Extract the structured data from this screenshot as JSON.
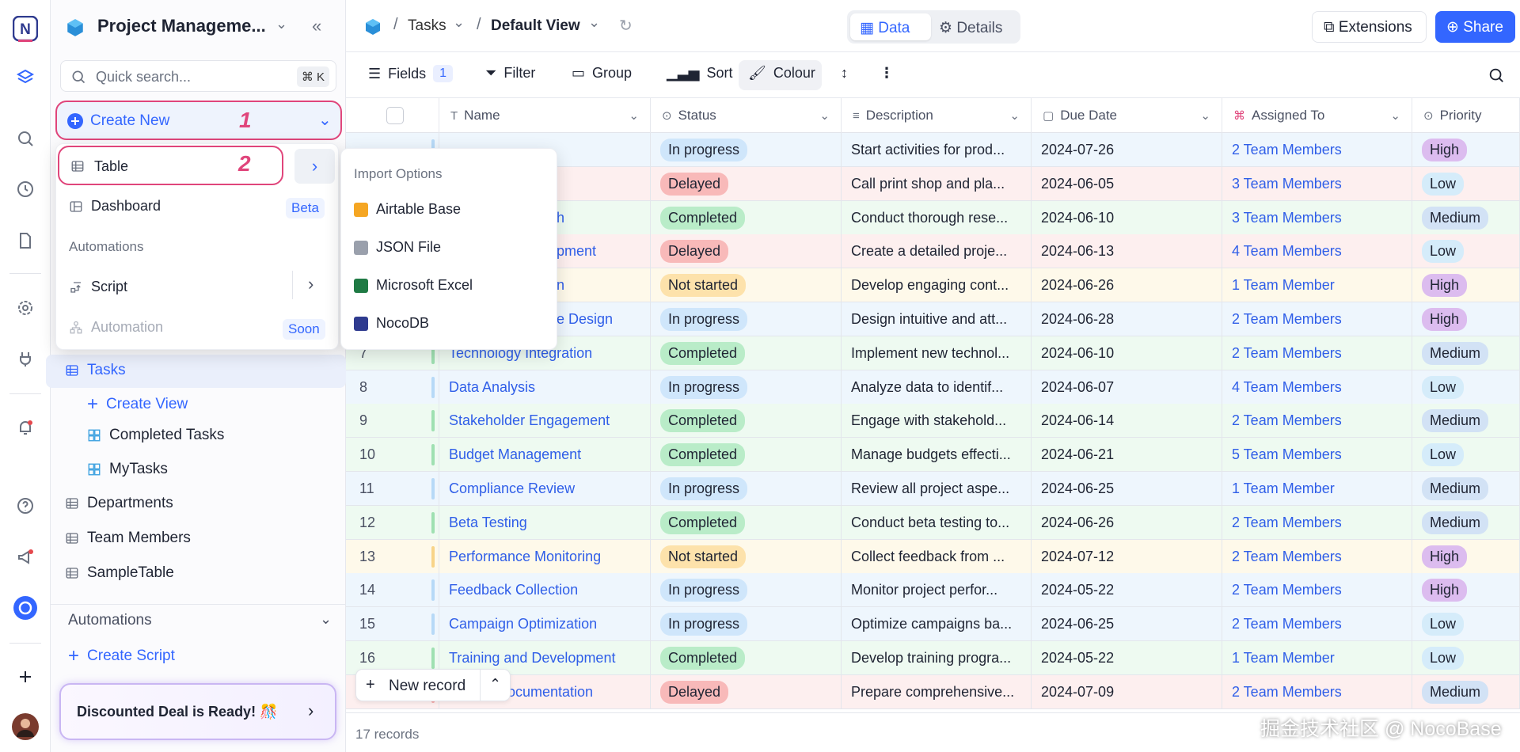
{
  "sidebar": {
    "project": "Project Manageme...",
    "search": "Quick search...",
    "shortcut": "⌘ K",
    "create_new": "Create New",
    "step_1": "1",
    "tables": [
      {
        "name": "Tasks",
        "selected": true
      },
      {
        "name": "Departments"
      },
      {
        "name": "Team Members"
      },
      {
        "name": "SampleTable"
      }
    ],
    "create_view": "Create View",
    "views": [
      "Completed Tasks",
      "MyTasks"
    ],
    "automations": "Automations",
    "create_script": "Create Script",
    "promo": "Discounted Deal is Ready! 🎊"
  },
  "create_menu": {
    "table": "Table",
    "step_2": "2",
    "dashboard": "Dashboard",
    "dashboard_badge": "Beta",
    "automations": "Automations",
    "script": "Script",
    "automation": "Automation",
    "automation_badge": "Soon"
  },
  "import_menu": {
    "title": "Import Options",
    "items": [
      "Airtable Base",
      "JSON File",
      "Microsoft Excel",
      "NocoDB"
    ]
  },
  "topbar": {
    "table": "Tasks",
    "view": "Default View",
    "tabs": [
      "Data",
      "Details"
    ],
    "extensions": "Extensions",
    "share": "Share"
  },
  "toolbar": {
    "fields": "Fields",
    "fields_count": "1",
    "filter": "Filter",
    "group": "Group",
    "sort": "Sort",
    "colour": "Colour"
  },
  "table": {
    "columns": [
      "Name",
      "Status",
      "Description",
      "Due Date",
      "Assigned To",
      "Priority"
    ],
    "status_colors": {
      "In progress": {
        "row": "#eef6fd",
        "pill": "#cfe6fb",
        "bar": "#b7d9f7"
      },
      "Delayed": {
        "row": "#fdefef",
        "pill": "#f8b9b9",
        "bar": "#f4a9a9"
      },
      "Completed": {
        "row": "#eefaf1",
        "pill": "#b9ecc8",
        "bar": "#9fe0b2"
      },
      "Not started": {
        "row": "#fef9ea",
        "pill": "#fde2ab",
        "bar": "#f8d488"
      }
    },
    "priority_colors": {
      "High": "#dcbcef",
      "Low": "#d5ecfa",
      "Medium": "#d2e2f5"
    },
    "rows": [
      {
        "no": null,
        "name": null,
        "status": "In progress",
        "description": "Start activities for prod...",
        "due": "2024-07-26",
        "assigned": "2 Team Members",
        "priority": "High"
      },
      {
        "no": null,
        "name": null,
        "status": "Delayed",
        "description": "Call print shop and pla...",
        "due": "2024-06-05",
        "assigned": "3 Team Members",
        "priority": "Low"
      },
      {
        "no": null,
        "name": "h",
        "partial": true,
        "status": "Completed",
        "description": "Conduct thorough rese...",
        "due": "2024-06-10",
        "assigned": "3 Team Members",
        "priority": "Medium"
      },
      {
        "no": null,
        "name": "pment",
        "partial": true,
        "status": "Delayed",
        "description": "Create a detailed proje...",
        "due": "2024-06-13",
        "assigned": "4 Team Members",
        "priority": "Low"
      },
      {
        "no": null,
        "name": "n",
        "partial": true,
        "status": "Not started",
        "description": "Develop engaging cont...",
        "due": "2024-06-26",
        "assigned": "1 Team Member",
        "priority": "High"
      },
      {
        "no": null,
        "name": "e Design",
        "partial": true,
        "status": "In progress",
        "description": "Design intuitive and att...",
        "due": "2024-06-28",
        "assigned": "2 Team Members",
        "priority": "High"
      },
      {
        "no": "7",
        "name": "Technology Integration",
        "status": "Completed",
        "description": "Implement new technol...",
        "due": "2024-06-10",
        "assigned": "2 Team Members",
        "priority": "Medium"
      },
      {
        "no": "8",
        "name": "Data Analysis",
        "status": "In progress",
        "description": "Analyze data to identif...",
        "due": "2024-06-07",
        "assigned": "4 Team Members",
        "priority": "Low"
      },
      {
        "no": "9",
        "name": "Stakeholder Engagement",
        "status": "Completed",
        "description": "Engage with stakehold...",
        "due": "2024-06-14",
        "assigned": "2 Team Members",
        "priority": "Medium"
      },
      {
        "no": "10",
        "name": "Budget Management",
        "status": "Completed",
        "description": "Manage budgets effecti...",
        "due": "2024-06-21",
        "assigned": "5 Team Members",
        "priority": "Low"
      },
      {
        "no": "11",
        "name": "Compliance Review",
        "status": "In progress",
        "description": "Review all project aspe...",
        "due": "2024-06-25",
        "assigned": "1 Team Member",
        "priority": "Medium"
      },
      {
        "no": "12",
        "name": "Beta Testing",
        "status": "Completed",
        "description": "Conduct beta testing to...",
        "due": "2024-06-26",
        "assigned": "2 Team Members",
        "priority": "Medium"
      },
      {
        "no": "13",
        "name": "Performance Monitoring",
        "status": "Not started",
        "description": "Collect feedback from ...",
        "due": "2024-07-12",
        "assigned": "2 Team Members",
        "priority": "High"
      },
      {
        "no": "14",
        "name": "Feedback Collection",
        "status": "In progress",
        "description": "Monitor project perfor...",
        "due": "2024-05-22",
        "assigned": "2 Team Members",
        "priority": "High"
      },
      {
        "no": "15",
        "name": "Campaign Optimization",
        "status": "In progress",
        "description": "Optimize campaigns ba...",
        "due": "2024-06-25",
        "assigned": "2 Team Members",
        "priority": "Low"
      },
      {
        "no": "16",
        "name": "Training and Development",
        "status": "Completed",
        "description": "Develop training progra...",
        "due": "2024-05-22",
        "assigned": "1 Team Member",
        "priority": "Low"
      },
      {
        "no": null,
        "name": "ocumentation",
        "tail": true,
        "status": "Delayed",
        "description": "Prepare comprehensive...",
        "due": "2024-07-09",
        "assigned": "2 Team Members",
        "priority": "Medium"
      }
    ]
  },
  "footer": {
    "new_record": "New record",
    "count": "17 records",
    "watermark": "掘金技术社区 @ NocoBase"
  }
}
